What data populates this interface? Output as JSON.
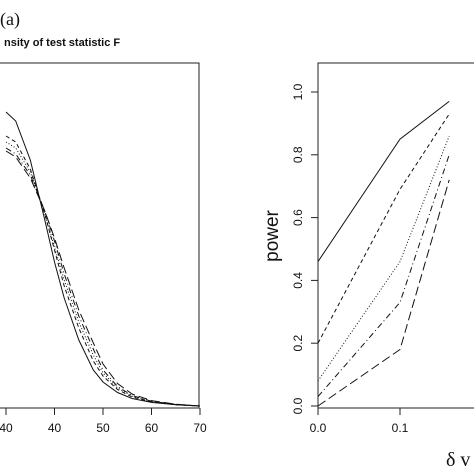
{
  "panel_label": "(a)",
  "chart_data": [
    {
      "type": "line",
      "title": "nsity of test statistic F",
      "xlabel": "",
      "ylabel": "",
      "x_ticks": [
        "40",
        "40",
        "50",
        "60",
        "70"
      ],
      "xlim": [
        28,
        70
      ],
      "series": [
        {
          "style": "solid",
          "x": [
            30,
            32,
            35,
            38,
            40,
            42,
            45,
            48,
            50,
            53,
            56,
            60,
            65,
            70
          ],
          "y": [
            0.98,
            0.95,
            0.82,
            0.62,
            0.48,
            0.36,
            0.22,
            0.12,
            0.08,
            0.045,
            0.025,
            0.012,
            0.004,
            0.0
          ]
        },
        {
          "style": "dashed",
          "x": [
            30,
            32,
            35,
            38,
            40,
            42,
            45,
            48,
            50,
            53,
            56,
            60,
            65,
            70
          ],
          "y": [
            0.9,
            0.88,
            0.79,
            0.64,
            0.52,
            0.4,
            0.26,
            0.15,
            0.1,
            0.055,
            0.03,
            0.014,
            0.004,
            0.0
          ]
        },
        {
          "style": "dotted",
          "x": [
            30,
            32,
            35,
            38,
            40,
            42,
            45,
            48,
            50,
            53,
            56,
            60,
            65,
            70
          ],
          "y": [
            0.88,
            0.86,
            0.78,
            0.64,
            0.53,
            0.42,
            0.28,
            0.17,
            0.11,
            0.06,
            0.033,
            0.015,
            0.005,
            0.0
          ]
        },
        {
          "style": "dotdash",
          "x": [
            30,
            32,
            35,
            38,
            40,
            42,
            45,
            48,
            50,
            53,
            56,
            60,
            65,
            70
          ],
          "y": [
            0.86,
            0.84,
            0.77,
            0.65,
            0.55,
            0.44,
            0.3,
            0.19,
            0.12,
            0.065,
            0.035,
            0.016,
            0.005,
            0.0
          ]
        },
        {
          "style": "longdash",
          "x": [
            30,
            32,
            35,
            38,
            40,
            42,
            45,
            48,
            50,
            53,
            56,
            60,
            65,
            70
          ],
          "y": [
            0.85,
            0.83,
            0.76,
            0.65,
            0.56,
            0.46,
            0.32,
            0.21,
            0.14,
            0.075,
            0.04,
            0.018,
            0.006,
            0.0
          ]
        }
      ]
    },
    {
      "type": "line",
      "title": "",
      "xlabel": "δ v",
      "ylabel": "power",
      "x_ticks": [
        "0.0",
        "0.1"
      ],
      "y_ticks": [
        "0.0",
        "0.2",
        "0.4",
        "0.6",
        "0.8",
        "1.0"
      ],
      "xlim": [
        0.0,
        0.16
      ],
      "ylim": [
        0.0,
        1.0
      ],
      "series": [
        {
          "style": "solid",
          "x": [
            0.0,
            0.1,
            0.16
          ],
          "y": [
            0.46,
            0.85,
            0.97
          ]
        },
        {
          "style": "dashed",
          "x": [
            0.0,
            0.1,
            0.16
          ],
          "y": [
            0.2,
            0.69,
            0.93
          ]
        },
        {
          "style": "dotted",
          "x": [
            0.0,
            0.1,
            0.16
          ],
          "y": [
            0.08,
            0.46,
            0.86
          ]
        },
        {
          "style": "dotdash",
          "x": [
            0.0,
            0.1,
            0.16
          ],
          "y": [
            0.03,
            0.33,
            0.8
          ]
        },
        {
          "style": "longdash",
          "x": [
            0.0,
            0.1,
            0.16
          ],
          "y": [
            0.0,
            0.18,
            0.72
          ]
        }
      ]
    }
  ]
}
